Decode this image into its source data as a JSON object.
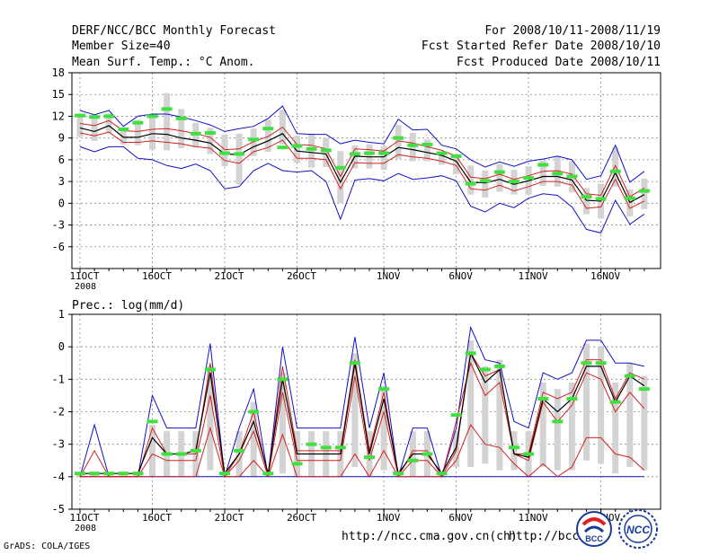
{
  "header": {
    "title": "DERF/NCC/BCC Monthly Forecast",
    "member": "Member Size=40",
    "variable": "Mean Surf. Temp.: °C Anom.",
    "period": "For 2008/10/11-2008/11/19",
    "started": "Fcst Started Refer Date 2008/10/10",
    "produced": "Fcst Produced Date 2008/10/11"
  },
  "footer": {
    "url1": "http://ncc.cma.gov.cn(ch)",
    "url2": "http://bcc.c",
    "grads": "GrADS: COLA/IGES",
    "logo1": "BCC",
    "logo2": "NCC"
  },
  "colors": {
    "member_bar": "#d3d3d3",
    "mean": "#000000",
    "spread": "#d42020",
    "envelope": "#1010c8",
    "marker": "#40e040"
  },
  "chart_data": [
    {
      "type": "line",
      "title": "",
      "ylabel": "°C Anom.",
      "ylim": [
        -9,
        18
      ],
      "yticks": [
        -6,
        -3,
        0,
        3,
        6,
        9,
        12,
        15,
        18
      ],
      "xtick_labels": [
        "11OCT",
        "16OCT",
        "21OCT",
        "26OCT",
        "1NOV",
        "6NOV",
        "11NOV",
        "16NOV"
      ],
      "xtick_index": [
        0,
        5,
        10,
        15,
        21,
        26,
        31,
        36
      ],
      "xsub": "2008",
      "days": 40,
      "series": [
        {
          "name": "max",
          "values": [
            12.8,
            12.2,
            12.8,
            10.6,
            12.0,
            12.3,
            12.3,
            11.9,
            11.4,
            10.8,
            9.9,
            10.3,
            10.6,
            11.7,
            13.4,
            9.6,
            9.5,
            9.5,
            8.2,
            8.7,
            8.4,
            8.2,
            11.6,
            10.1,
            10.2,
            8.0,
            7.5,
            6.0,
            5.0,
            5.7,
            5.1,
            5.8,
            6.1,
            6.5,
            6.0,
            3.3,
            3.8,
            8.0,
            2.9,
            4.4
          ]
        },
        {
          "name": "upper",
          "values": [
            11.0,
            10.7,
            11.4,
            10.0,
            9.9,
            10.2,
            10.3,
            10.0,
            9.6,
            9.1,
            7.4,
            7.5,
            8.5,
            9.2,
            10.5,
            8.1,
            8.0,
            7.5,
            3.7,
            7.5,
            7.4,
            7.2,
            8.6,
            8.3,
            7.8,
            7.3,
            6.5,
            3.6,
            3.4,
            4.0,
            3.3,
            3.8,
            4.4,
            4.5,
            4.0,
            1.3,
            1.1,
            5.2,
            0.9,
            2.1
          ]
        },
        {
          "name": "mean",
          "values": [
            10.4,
            9.9,
            10.7,
            9.1,
            9.1,
            9.6,
            9.5,
            9.0,
            8.7,
            8.3,
            6.8,
            6.7,
            7.8,
            8.6,
            9.6,
            7.2,
            7.0,
            6.8,
            2.9,
            6.5,
            6.4,
            6.4,
            7.7,
            7.4,
            7.0,
            6.6,
            5.8,
            2.9,
            2.8,
            3.3,
            2.6,
            3.1,
            3.7,
            3.7,
            3.2,
            0.4,
            0.3,
            4.2,
            0.1,
            1.2
          ]
        },
        {
          "name": "lower",
          "values": [
            9.7,
            9.3,
            9.8,
            8.4,
            8.4,
            8.6,
            8.4,
            8.2,
            7.8,
            7.6,
            5.9,
            5.5,
            7.1,
            7.7,
            8.7,
            6.2,
            6.2,
            6.0,
            2.0,
            5.6,
            5.5,
            5.5,
            6.7,
            6.4,
            6.2,
            5.8,
            5.2,
            2.0,
            1.8,
            2.5,
            1.7,
            2.3,
            3.0,
            3.0,
            2.5,
            -0.7,
            -0.5,
            3.3,
            -0.7,
            0.3
          ]
        },
        {
          "name": "min",
          "values": [
            7.8,
            7.1,
            7.8,
            7.8,
            6.2,
            6.0,
            5.2,
            4.8,
            5.4,
            4.5,
            2.0,
            2.3,
            4.5,
            5.5,
            4.5,
            4.3,
            4.5,
            3.0,
            -2.2,
            3.2,
            3.4,
            3.1,
            4.1,
            3.3,
            3.5,
            3.8,
            3.1,
            -0.4,
            -1.2,
            0.0,
            -0.6,
            0.7,
            1.3,
            1.1,
            -0.5,
            -3.6,
            -4.1,
            0.4,
            -2.9,
            -1.5
          ]
        },
        {
          "name": "bar_top",
          "values": [
            12.3,
            12.2,
            12.4,
            10.3,
            11.5,
            12.1,
            15.2,
            13.0,
            11.1,
            10.4,
            9.5,
            9.6,
            10.3,
            11.5,
            12.9,
            9.3,
            9.6,
            9.0,
            7.2,
            8.0,
            8.1,
            7.9,
            10.8,
            9.7,
            8.8,
            7.1,
            6.6,
            5.2,
            4.5,
            5.4,
            4.6,
            5.1,
            5.9,
            6.5,
            5.8,
            2.1,
            2.7,
            7.7,
            1.9,
            3.4
          ]
        },
        {
          "name": "bar_bottom",
          "values": [
            9.2,
            8.6,
            9.7,
            8.1,
            8.0,
            7.4,
            7.3,
            7.6,
            7.7,
            6.8,
            5.1,
            2.6,
            6.5,
            7.1,
            8.1,
            5.6,
            4.9,
            5.0,
            0.0,
            4.8,
            4.8,
            4.6,
            6.1,
            5.8,
            5.8,
            5.3,
            4.0,
            1.2,
            0.8,
            1.6,
            1.2,
            1.2,
            2.4,
            2.3,
            1.5,
            -1.5,
            -2.1,
            2.3,
            -1.8,
            -0.8
          ]
        },
        {
          "name": "marker",
          "values": [
            12.1,
            11.9,
            12.0,
            10.2,
            11.1,
            12.0,
            13.0,
            11.7,
            9.6,
            9.7,
            6.9,
            6.8,
            8.8,
            10.3,
            7.7,
            7.9,
            7.5,
            7.3,
            4.9,
            6.8,
            6.9,
            6.9,
            9.0,
            8.0,
            8.1,
            6.9,
            6.5,
            2.7,
            3.1,
            4.3,
            3.0,
            3.5,
            5.3,
            4.1,
            3.7,
            0.9,
            0.6,
            4.4,
            0.7,
            1.7
          ]
        }
      ]
    },
    {
      "type": "line",
      "title": "Prec.: log(mm/d)",
      "ylim": [
        -5,
        1
      ],
      "yticks": [
        -5,
        -4,
        -3,
        -2,
        -1,
        0,
        1
      ],
      "xtick_labels": [
        "11OCT",
        "16OCT",
        "21OCT",
        "26OCT",
        "1NOV",
        "6NOV",
        "11NOV",
        "16NOV"
      ],
      "xtick_index": [
        0,
        5,
        10,
        15,
        21,
        26,
        31,
        36
      ],
      "xsub": "2008",
      "days": 40,
      "series": [
        {
          "name": "max",
          "values": [
            -4.0,
            -2.4,
            -4.0,
            -4.0,
            -4.0,
            -1.5,
            -2.5,
            -2.5,
            -2.5,
            0.1,
            -4.0,
            -2.5,
            -1.3,
            -4.0,
            0.0,
            -2.5,
            -2.5,
            -2.5,
            -2.5,
            0.3,
            -2.5,
            -0.8,
            -4.0,
            -2.5,
            -2.5,
            -4.0,
            -2.5,
            0.6,
            -0.4,
            -0.5,
            -2.3,
            -2.5,
            -0.8,
            -1.0,
            -0.8,
            0.2,
            0.2,
            -0.5,
            -0.5,
            -0.6
          ]
        },
        {
          "name": "upper",
          "values": [
            -4.0,
            -3.2,
            -4.0,
            -4.0,
            -4.0,
            -2.5,
            -3.3,
            -3.3,
            -3.3,
            -0.5,
            -4.0,
            -3.3,
            -2.0,
            -4.0,
            -0.6,
            -3.2,
            -3.2,
            -3.2,
            -3.2,
            -0.4,
            -3.2,
            -1.4,
            -4.0,
            -3.2,
            -3.2,
            -4.0,
            -3.2,
            -0.2,
            -0.9,
            -0.7,
            -3.3,
            -3.3,
            -1.4,
            -1.6,
            -1.4,
            -0.4,
            -0.4,
            -1.6,
            -0.8,
            -1.0
          ]
        },
        {
          "name": "mean",
          "values": [
            -3.9,
            -3.9,
            -3.9,
            -3.9,
            -3.9,
            -2.8,
            -3.3,
            -3.3,
            -3.2,
            -0.8,
            -3.9,
            -3.3,
            -2.3,
            -3.9,
            -1.0,
            -3.3,
            -3.3,
            -3.3,
            -3.3,
            -0.5,
            -3.3,
            -1.6,
            -3.9,
            -3.3,
            -3.3,
            -3.9,
            -3.1,
            -0.2,
            -1.1,
            -0.7,
            -3.3,
            -3.4,
            -1.6,
            -2.0,
            -1.6,
            -0.6,
            -0.6,
            -1.7,
            -0.9,
            -1.2
          ]
        },
        {
          "name": "lower",
          "values": [
            -4.0,
            -4.0,
            -4.0,
            -4.0,
            -4.0,
            -3.3,
            -3.5,
            -3.5,
            -3.5,
            -1.5,
            -4.0,
            -3.5,
            -2.6,
            -4.0,
            -1.4,
            -3.5,
            -3.5,
            -3.5,
            -3.5,
            -0.9,
            -3.5,
            -2.0,
            -4.0,
            -3.5,
            -3.5,
            -4.0,
            -2.3,
            -0.5,
            -1.5,
            -1.1,
            -3.3,
            -3.5,
            -1.7,
            -2.3,
            -1.8,
            -0.8,
            -1.0,
            -2.0,
            -1.4,
            -1.9
          ]
        },
        {
          "name": "low",
          "values": [
            -4.0,
            -4.0,
            -4.0,
            -4.0,
            -4.0,
            -4.0,
            -4.0,
            -4.0,
            -4.0,
            -2.5,
            -4.0,
            -4.0,
            -3.5,
            -4.0,
            -2.7,
            -4.0,
            -4.0,
            -4.0,
            -4.0,
            -3.3,
            -4.0,
            -3.2,
            -4.0,
            -4.0,
            -4.0,
            -4.0,
            -3.5,
            -2.4,
            -3.0,
            -3.1,
            -3.6,
            -4.0,
            -3.6,
            -4.0,
            -3.7,
            -2.8,
            -2.8,
            -3.3,
            -3.4,
            -3.8
          ]
        },
        {
          "name": "min",
          "values": [
            -4.0,
            -4.0,
            -4.0,
            -4.0,
            -4.0,
            -4.0,
            -4.0,
            -4.0,
            -4.0,
            -4.0,
            -4.0,
            -4.0,
            -4.0,
            -4.0,
            -4.0,
            -4.0,
            -4.0,
            -4.0,
            -4.0,
            -4.0,
            -4.0,
            -4.0,
            -4.0,
            -4.0,
            -4.0,
            -4.0,
            -4.0,
            -4.0,
            -4.0,
            -4.0,
            -4.0,
            -4.0,
            -4.0,
            -4.0,
            -4.0,
            -4.0,
            -4.0,
            -4.0,
            -4.0,
            -4.0
          ]
        },
        {
          "name": "bar_top",
          "values": [
            -3.9,
            -3.9,
            -3.9,
            -3.9,
            -3.9,
            -2.4,
            -2.6,
            -2.6,
            -2.6,
            -0.6,
            -3.9,
            -2.6,
            -1.7,
            -3.9,
            -0.8,
            -2.6,
            -2.6,
            -2.6,
            -2.6,
            -0.2,
            -2.6,
            -1.2,
            -3.9,
            -2.6,
            -2.6,
            -3.9,
            -2.6,
            0.2,
            -0.6,
            -0.4,
            -2.6,
            -2.6,
            -1.1,
            -1.3,
            -1.1,
            0.1,
            0.0,
            -1.1,
            -0.5,
            -0.9
          ]
        },
        {
          "name": "bar_bottom",
          "values": [
            -4.0,
            -4.0,
            -4.0,
            -4.0,
            -4.0,
            -4.0,
            -4.0,
            -4.0,
            -4.0,
            -3.8,
            -4.0,
            -4.0,
            -4.0,
            -4.0,
            -3.9,
            -4.0,
            -4.0,
            -4.0,
            -4.0,
            -3.7,
            -4.0,
            -3.8,
            -4.0,
            -4.0,
            -4.0,
            -4.0,
            -3.7,
            -3.7,
            -3.6,
            -3.8,
            -3.8,
            -4.0,
            -3.7,
            -3.8,
            -3.8,
            -3.5,
            -3.6,
            -3.9,
            -3.7,
            -3.8
          ]
        },
        {
          "name": "marker",
          "values": [
            -3.9,
            -3.9,
            -3.9,
            -3.9,
            -3.9,
            -2.3,
            -3.3,
            -3.3,
            -3.2,
            -0.7,
            -3.9,
            -3.2,
            -2.0,
            -3.9,
            -1.0,
            -3.6,
            -3.0,
            -3.1,
            -3.1,
            -0.5,
            -3.4,
            -1.3,
            -3.9,
            -3.5,
            -3.3,
            -3.9,
            -2.1,
            -0.2,
            -0.7,
            -0.6,
            -3.1,
            -3.3,
            -1.6,
            -2.3,
            -1.6,
            -0.5,
            -0.5,
            -1.7,
            -0.9,
            -1.3
          ]
        }
      ]
    }
  ]
}
